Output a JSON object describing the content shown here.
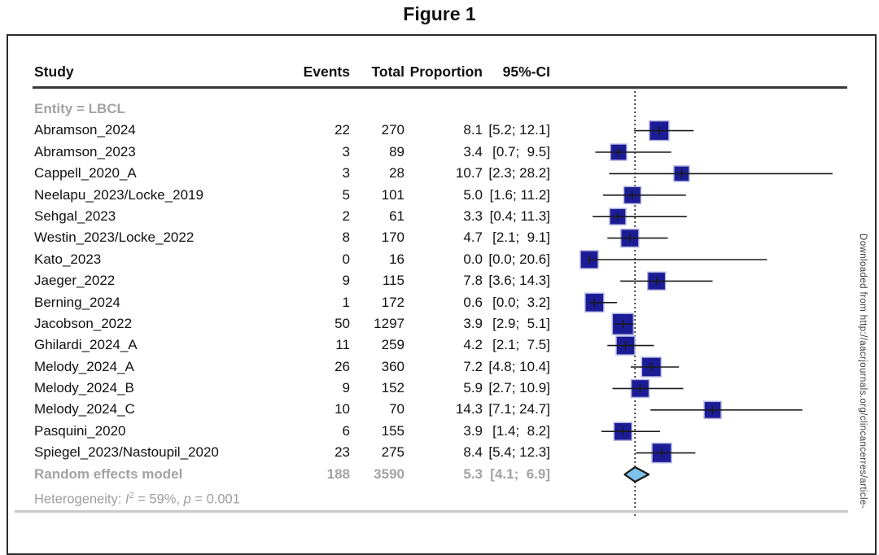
{
  "title": "Figure 1",
  "watermark": "Downloaded from http://aacrjournals.org/clincancerres/article-",
  "table": {
    "headers": {
      "study": "Study",
      "events": "Events",
      "total": "Total",
      "proportion": "Proportion",
      "ci": "95%-CI"
    },
    "group_label": "Entity = LBCL",
    "rows": [
      {
        "study": "Abramson_2024",
        "events": "22",
        "total": "270",
        "proportion": "8.1",
        "ci": "[5.2; 12.1]"
      },
      {
        "study": "Abramson_2023",
        "events": "3",
        "total": "89",
        "proportion": "3.4",
        "ci": "[0.7;  9.5]"
      },
      {
        "study": "Cappell_2020_A",
        "events": "3",
        "total": "28",
        "proportion": "10.7",
        "ci": "[2.3; 28.2]"
      },
      {
        "study": "Neelapu_2023/Locke_2019",
        "events": "5",
        "total": "101",
        "proportion": "5.0",
        "ci": "[1.6; 11.2]"
      },
      {
        "study": "Sehgal_2023",
        "events": "2",
        "total": "61",
        "proportion": "3.3",
        "ci": "[0.4; 11.3]"
      },
      {
        "study": "Westin_2023/Locke_2022",
        "events": "8",
        "total": "170",
        "proportion": "4.7",
        "ci": "[2.1;  9.1]"
      },
      {
        "study": "Kato_2023",
        "events": "0",
        "total": "16",
        "proportion": "0.0",
        "ci": "[0.0; 20.6]"
      },
      {
        "study": "Jaeger_2022",
        "events": "9",
        "total": "115",
        "proportion": "7.8",
        "ci": "[3.6; 14.3]"
      },
      {
        "study": "Berning_2024",
        "events": "1",
        "total": "172",
        "proportion": "0.6",
        "ci": "[0.0;  3.2]"
      },
      {
        "study": "Jacobson_2022",
        "events": "50",
        "total": "1297",
        "proportion": "3.9",
        "ci": "[2.9;  5.1]"
      },
      {
        "study": "Ghilardi_2024_A",
        "events": "11",
        "total": "259",
        "proportion": "4.2",
        "ci": "[2.1;  7.5]"
      },
      {
        "study": "Melody_2024_A",
        "events": "26",
        "total": "360",
        "proportion": "7.2",
        "ci": "[4.8; 10.4]"
      },
      {
        "study": "Melody_2024_B",
        "events": "9",
        "total": "152",
        "proportion": "5.9",
        "ci": "[2.7; 10.9]"
      },
      {
        "study": "Melody_2024_C",
        "events": "10",
        "total": "70",
        "proportion": "14.3",
        "ci": "[7.1; 24.7]"
      },
      {
        "study": "Pasquini_2020",
        "events": "6",
        "total": "155",
        "proportion": "3.9",
        "ci": "[1.4;  8.2]"
      },
      {
        "study": "Spiegel_2023/Nastoupil_2020",
        "events": "23",
        "total": "275",
        "proportion": "8.4",
        "ci": "[5.4; 12.3]"
      }
    ],
    "summary_row": {
      "study": "Random effects model",
      "events": "188",
      "total": "3590",
      "proportion": "5.3",
      "ci": "[4.1;  6.9]"
    },
    "heterogeneity": {
      "prefix": "Heterogeneity: ",
      "i": "I",
      "sup": "2",
      "mid": " = 59%, ",
      "p": "p",
      "tail": " = 0.001"
    }
  },
  "chart_data": {
    "type": "forest",
    "title": "Figure 1",
    "group": "Entity = LBCL",
    "x_axis": {
      "min": 0,
      "max": 30,
      "null_line_at": 5.3,
      "grid": false,
      "axis_labels_visible": false
    },
    "studies": [
      {
        "name": "Abramson_2024",
        "events": 22,
        "total": 270,
        "proportion": 8.1,
        "ci": [
          5.2,
          12.1
        ],
        "square": 24
      },
      {
        "name": "Abramson_2023",
        "events": 3,
        "total": 89,
        "proportion": 3.4,
        "ci": [
          0.7,
          9.5
        ],
        "square": 20
      },
      {
        "name": "Cappell_2020_A",
        "events": 3,
        "total": 28,
        "proportion": 10.7,
        "ci": [
          2.3,
          28.2
        ],
        "square": 19
      },
      {
        "name": "Neelapu_2023/Locke_2019",
        "events": 5,
        "total": 101,
        "proportion": 5.0,
        "ci": [
          1.6,
          11.2
        ],
        "square": 21
      },
      {
        "name": "Sehgal_2023",
        "events": 2,
        "total": 61,
        "proportion": 3.3,
        "ci": [
          0.4,
          11.3
        ],
        "square": 20
      },
      {
        "name": "Westin_2023/Locke_2022",
        "events": 8,
        "total": 170,
        "proportion": 4.7,
        "ci": [
          2.1,
          9.1
        ],
        "square": 22
      },
      {
        "name": "Kato_2023",
        "events": 0,
        "total": 16,
        "proportion": 0.0,
        "ci": [
          0.0,
          20.6
        ],
        "square": 22
      },
      {
        "name": "Jaeger_2022",
        "events": 9,
        "total": 115,
        "proportion": 7.8,
        "ci": [
          3.6,
          14.3
        ],
        "square": 22
      },
      {
        "name": "Berning_2024",
        "events": 1,
        "total": 172,
        "proportion": 0.6,
        "ci": [
          0.0,
          3.2
        ],
        "square": 23
      },
      {
        "name": "Jacobson_2022",
        "events": 50,
        "total": 1297,
        "proportion": 3.9,
        "ci": [
          2.9,
          5.1
        ],
        "square": 26
      },
      {
        "name": "Ghilardi_2024_A",
        "events": 11,
        "total": 259,
        "proportion": 4.2,
        "ci": [
          2.1,
          7.5
        ],
        "square": 23
      },
      {
        "name": "Melody_2024_A",
        "events": 26,
        "total": 360,
        "proportion": 7.2,
        "ci": [
          4.8,
          10.4
        ],
        "square": 24
      },
      {
        "name": "Melody_2024_B",
        "events": 9,
        "total": 152,
        "proportion": 5.9,
        "ci": [
          2.7,
          10.9
        ],
        "square": 22
      },
      {
        "name": "Melody_2024_C",
        "events": 10,
        "total": 70,
        "proportion": 14.3,
        "ci": [
          7.1,
          24.7
        ],
        "square": 21
      },
      {
        "name": "Pasquini_2020",
        "events": 6,
        "total": 155,
        "proportion": 3.9,
        "ci": [
          1.4,
          8.2
        ],
        "square": 22
      },
      {
        "name": "Spiegel_2023/Nastoupil_2020",
        "events": 23,
        "total": 275,
        "proportion": 8.4,
        "ci": [
          5.4,
          12.3
        ],
        "square": 24
      }
    ],
    "summary": {
      "name": "Random effects model",
      "events": 188,
      "total": 3590,
      "proportion": 5.3,
      "ci": [
        4.1,
        6.9
      ]
    },
    "heterogeneity": {
      "I2": "59%",
      "p": "0.001"
    }
  },
  "colors": {
    "square_fill": "#1c1c96",
    "square_halo": "#b3b5e3",
    "ci_line": "#1a1a1a",
    "diamond_fill": "#7dc2ea",
    "diamond_stroke": "#1a1a1a",
    "null_line": "#111111",
    "gray_text": "#a3a3a3",
    "rule_dark": "#3a3a3a",
    "rule_light": "#c8c8c8"
  }
}
